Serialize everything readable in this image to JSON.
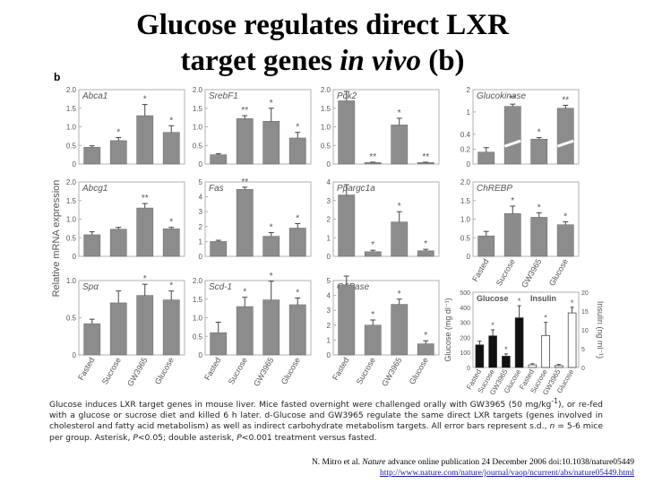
{
  "slide": {
    "title_line1": "Glucose regulates direct LXR",
    "title_line2_pre": "target genes ",
    "title_line2_it": "in vivo",
    "title_line2_post": " (b)",
    "panel_letter": "b",
    "caption_1": "Glucose induces LXR target genes in mouse liver. Mice fasted overnight were challenged orally with GW3965 (50 mg/kg",
    "caption_sup": "-1",
    "caption_2": "), or re-fed with a glucose or sucrose diet and killed 6 h later. d-Glucose and GW3965 regulate the same direct LXR targets (genes involved in cholesterol and fatty acid metabolism) as well as indirect carbohydrate metabolism targets. All error bars represent s.d., ",
    "caption_n": "n",
    "caption_3": " = 5-6 mice per group. Asterisk, ",
    "caption_p1": "P",
    "caption_4": "<0.05; double asterisk, ",
    "caption_p2": "P",
    "caption_5": "<0.001 treatment versus fasted.",
    "cite_pre": "N. Mitro et al. ",
    "cite_journal": "Nature",
    "cite_post": " advance online publication 24 December 2006 doi:10.1038/nature05449",
    "url": "http://www.nature.com/nature/journal/vaop/ncurrent/abs/nature05449.html"
  },
  "chart_data": {
    "type": "bar",
    "ylabel": "Relative mRNA expression",
    "categories": [
      "Fasted",
      "Sucrose",
      "GW3965",
      "Glucose"
    ],
    "colors": {
      "bar": "#8c8c8c",
      "frame": "#b0b0b0",
      "text": "#555555"
    },
    "panels": [
      {
        "name": "Abca1",
        "ylim": [
          0,
          2.0
        ],
        "ticks": [
          "0",
          "0.5",
          "1.0",
          "1.5",
          "2.0"
        ],
        "tick_values": [
          0,
          0.5,
          1.0,
          1.5,
          2.0
        ],
        "values": [
          0.45,
          0.63,
          1.3,
          0.85
        ],
        "errors": [
          0.04,
          0.08,
          0.3,
          0.18
        ],
        "stars": [
          "",
          "*",
          "*",
          "*"
        ]
      },
      {
        "name": "SrebF1",
        "ylim": [
          0,
          2.0
        ],
        "ticks": [
          "0",
          "0.5",
          "1.0",
          "1.5",
          "2.0"
        ],
        "tick_values": [
          0,
          0.5,
          1.0,
          1.5,
          2.0
        ],
        "values": [
          0.25,
          1.22,
          1.15,
          0.7
        ],
        "errors": [
          0.03,
          0.08,
          0.35,
          0.15
        ],
        "stars": [
          "",
          "**",
          "*",
          "*"
        ]
      },
      {
        "name": "Pck2",
        "ylim": [
          0,
          2.0
        ],
        "ticks": [
          "0",
          "0.5",
          "1.0",
          "1.5",
          "2.0"
        ],
        "tick_values": [
          0,
          0.5,
          1.0,
          1.5,
          2.0
        ],
        "values": [
          1.7,
          0.04,
          1.05,
          0.04
        ],
        "errors": [
          0.25,
          0.01,
          0.18,
          0.01
        ],
        "stars": [
          "",
          "**",
          "*",
          "**"
        ]
      },
      {
        "name": "Glucokinase",
        "ylim": [
          0,
          2.0
        ],
        "ticks": [
          "0",
          "0.2",
          "0.4",
          "1",
          "2"
        ],
        "tick_values": [
          0,
          0.4,
          0.8,
          1.4,
          2.0
        ],
        "values": [
          0.32,
          1.55,
          0.67,
          1.5
        ],
        "errors": [
          0.12,
          0.06,
          0.04,
          0.08
        ],
        "stars": [
          "",
          "**",
          "*",
          "**"
        ],
        "broken": true
      },
      {
        "name": "Abcg1",
        "ylim": [
          0,
          2.0
        ],
        "ticks": [
          "0",
          "0.5",
          "1.0",
          "1.5",
          "2.0"
        ],
        "tick_values": [
          0,
          0.5,
          1.0,
          1.5,
          2.0
        ],
        "values": [
          0.58,
          0.73,
          1.3,
          0.74
        ],
        "errors": [
          0.08,
          0.05,
          0.12,
          0.04
        ],
        "stars": [
          "",
          "",
          "**",
          "*"
        ]
      },
      {
        "name": "Fas",
        "ylim": [
          0,
          5
        ],
        "ticks": [
          "0",
          "1",
          "2",
          "3",
          "4",
          "5"
        ],
        "tick_values": [
          0,
          1,
          2,
          3,
          4,
          5
        ],
        "values": [
          1.0,
          4.5,
          1.35,
          1.9
        ],
        "errors": [
          0.08,
          0.15,
          0.25,
          0.3
        ],
        "stars": [
          "",
          "**",
          "*",
          "*"
        ]
      },
      {
        "name": "Ppargc1a",
        "ylim": [
          0,
          4
        ],
        "ticks": [
          "0",
          "1",
          "2",
          "3",
          "4"
        ],
        "tick_values": [
          0,
          1,
          2,
          3,
          4
        ],
        "values": [
          3.3,
          0.25,
          1.85,
          0.3
        ],
        "errors": [
          0.55,
          0.08,
          0.55,
          0.08
        ],
        "stars": [
          "",
          "*",
          "*",
          "*"
        ]
      },
      {
        "name": "ChREBP",
        "ylim": [
          0,
          2.0
        ],
        "ticks": [
          "0",
          "0.5",
          "1.0",
          "1.5",
          "2.0"
        ],
        "tick_values": [
          0,
          0.5,
          1.0,
          1.5,
          2.0
        ],
        "values": [
          0.55,
          1.15,
          1.05,
          0.85
        ],
        "errors": [
          0.12,
          0.2,
          0.12,
          0.08
        ],
        "stars": [
          "",
          "*",
          "*",
          "*"
        ]
      },
      {
        "name": "Spα",
        "ylim": [
          0,
          1.0
        ],
        "ticks": [
          "0",
          "0.5",
          "1.0"
        ],
        "tick_values": [
          0,
          0.5,
          1.0
        ],
        "values": [
          0.42,
          0.7,
          0.8,
          0.74
        ],
        "errors": [
          0.06,
          0.16,
          0.15,
          0.12
        ],
        "stars": [
          "",
          "",
          "*",
          "*"
        ]
      },
      {
        "name": "Scd-1",
        "ylim": [
          0,
          2.0
        ],
        "ticks": [
          "0",
          "0.5",
          "1.0",
          "1.5",
          "2.0"
        ],
        "tick_values": [
          0,
          0.5,
          1.0,
          1.5,
          2.0
        ],
        "values": [
          0.6,
          1.3,
          1.48,
          1.35
        ],
        "errors": [
          0.28,
          0.25,
          0.5,
          0.18
        ],
        "stars": [
          "",
          "*",
          "*",
          "*"
        ]
      },
      {
        "name": "G6Pase",
        "ylim": [
          0,
          5
        ],
        "ticks": [
          "0",
          "1",
          "2",
          "3",
          "4",
          "5"
        ],
        "tick_values": [
          0,
          1,
          2,
          3,
          4,
          5
        ],
        "values": [
          4.7,
          2.0,
          3.4,
          0.75
        ],
        "errors": [
          0.6,
          0.35,
          0.35,
          0.2
        ],
        "stars": [
          "",
          "*",
          "*",
          "*"
        ]
      }
    ],
    "glucose_insulin": {
      "labels": [
        "Glucose",
        "Insulin"
      ],
      "ylabel_left": "Glucose (mg dl⁻¹)",
      "ylabel_right": "Insulin (ng ml⁻¹)",
      "left_ticks": [
        "0",
        "100",
        "200",
        "300",
        "400",
        "500"
      ],
      "left_values": [
        0,
        100,
        200,
        300,
        400,
        500
      ],
      "right_ticks": [
        "0",
        "5",
        "10",
        "15",
        "20"
      ],
      "right_values": [
        0,
        5,
        10,
        15,
        20
      ],
      "glucose": {
        "values": [
          150,
          210,
          75,
          330
        ],
        "errors": [
          25,
          40,
          15,
          80
        ],
        "stars": [
          "",
          "*",
          "*",
          "*"
        ]
      },
      "insulin": {
        "values": [
          0.7,
          8.5,
          0.5,
          14.5
        ],
        "errors": [
          0.3,
          3.5,
          0.3,
          1.5
        ],
        "stars": [
          "",
          "*",
          "",
          "*"
        ]
      }
    }
  }
}
